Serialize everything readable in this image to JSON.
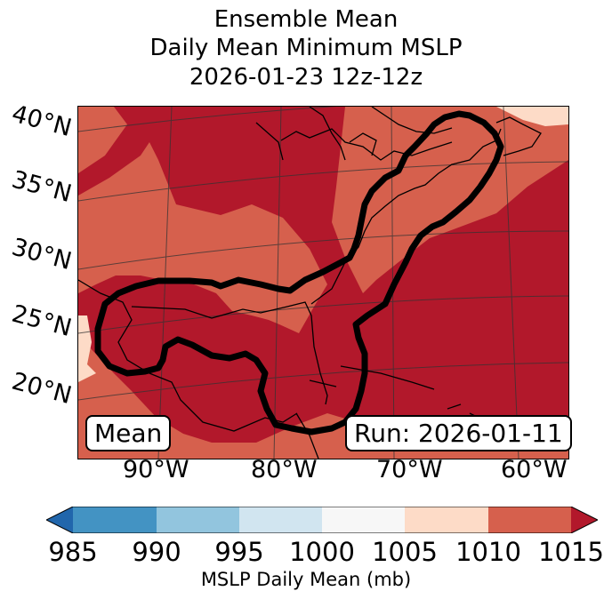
{
  "title": {
    "line1": "Ensemble Mean",
    "line2": "Daily Mean Minimum MSLP",
    "line3": "2026-01-23 12z-12z"
  },
  "latitude_labels": [
    "40°N",
    "35°N",
    "30°N",
    "25°N",
    "20°N"
  ],
  "longitude_labels": [
    "90°W",
    "80°W",
    "70°W",
    "60°W"
  ],
  "map_boxes": {
    "left": "Mean",
    "right": "Run: 2026-01-11"
  },
  "colorbar": {
    "label": "MSLP Daily Mean (mb)",
    "ticks": [
      "985",
      "990",
      "995",
      "1000",
      "1005",
      "1010",
      "1015"
    ],
    "bins": [
      {
        "range": "<985",
        "color": "#2166ac"
      },
      {
        "range": "985-990",
        "color": "#4393c3"
      },
      {
        "range": "990-995",
        "color": "#92c5de"
      },
      {
        "range": "995-1000",
        "color": "#d1e5f0"
      },
      {
        "range": "1000-1005",
        "color": "#f7f7f7"
      },
      {
        "range": "1005-1010",
        "color": "#fddbc7"
      },
      {
        "range": "1010-1015",
        "color": "#d6604d"
      },
      {
        "range": ">1015",
        "color": "#b2182b"
      }
    ]
  },
  "field_colors": {
    "high": "#b2182b",
    "mid": "#d6604d",
    "low": "#fddbc7"
  }
}
